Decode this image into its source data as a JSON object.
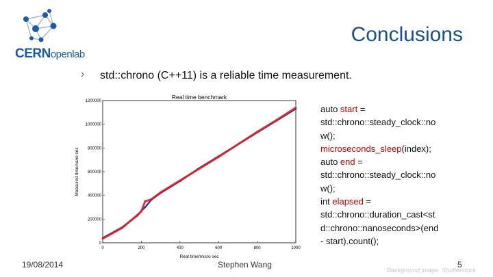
{
  "slide": {
    "title": "Conclusions",
    "bullet": "std::chrono (C++11) is  a  reliable  time  measurement."
  },
  "logo": {
    "brand": "CERN",
    "suffix": "openlab"
  },
  "code_lines": [
    [
      {
        "t": "auto "
      },
      {
        "t": "start",
        "kw": true
      },
      {
        "t": " ="
      }
    ],
    [
      {
        "t": "std::chrono::steady_clock::no"
      }
    ],
    [
      {
        "t": "w();"
      }
    ],
    [
      {
        "t": "microseconds_sleep",
        "kw": true
      },
      {
        "t": "(index);"
      }
    ],
    [
      {
        "t": "auto "
      },
      {
        "t": "end",
        "kw": true
      },
      {
        "t": " ="
      }
    ],
    [
      {
        "t": "std::chrono::steady_clock::no"
      }
    ],
    [
      {
        "t": "w();"
      }
    ],
    [
      {
        "t": "int "
      },
      {
        "t": "elapsed",
        "kw": true
      },
      {
        "t": " ="
      }
    ],
    [
      {
        "t": "std::chrono::duration_cast<st"
      }
    ],
    [
      {
        "t": "d::chrono::nanoseconds>(end"
      }
    ],
    [
      {
        "t": "- start).count();"
      }
    ]
  ],
  "footer": {
    "date": "19/08/2014",
    "author": "Stephen Wang",
    "page": "5",
    "credit": "Background image: Shutterstock"
  },
  "colors": {
    "title": "#1a4f8f",
    "keyword": "#c00000",
    "series_a": "#e02020",
    "series_b": "#2233aa"
  },
  "chart_data": {
    "type": "line",
    "title": "Real time benchmark",
    "xlabel": "Real time/micro sec",
    "ylabel": "Measured time/nano sec",
    "xlim": [
      0,
      1000
    ],
    "ylim": [
      0,
      1200000
    ],
    "xticks": [
      "0",
      "200",
      "400",
      "600",
      "800",
      "1000"
    ],
    "yticks": [
      "0",
      "200000",
      "400000",
      "600000",
      "800000",
      "1000000",
      "1200000"
    ],
    "series": [
      {
        "color": "#2233aa",
        "x": [
          0,
          100,
          180,
          200,
          220,
          250,
          300,
          400,
          500,
          600,
          700,
          800,
          900,
          1000
        ],
        "y": [
          40000,
          130000,
          230000,
          270000,
          300000,
          360000,
          420000,
          520000,
          630000,
          730000,
          830000,
          930000,
          1030000,
          1130000
        ]
      },
      {
        "color": "#e02020",
        "x": [
          0,
          100,
          180,
          200,
          220,
          250,
          300,
          400,
          500,
          600,
          700,
          800,
          900,
          1000
        ],
        "y": [
          35000,
          125000,
          235000,
          265000,
          350000,
          365000,
          425000,
          525000,
          625000,
          725000,
          830000,
          935000,
          1035000,
          1140000
        ]
      }
    ]
  }
}
